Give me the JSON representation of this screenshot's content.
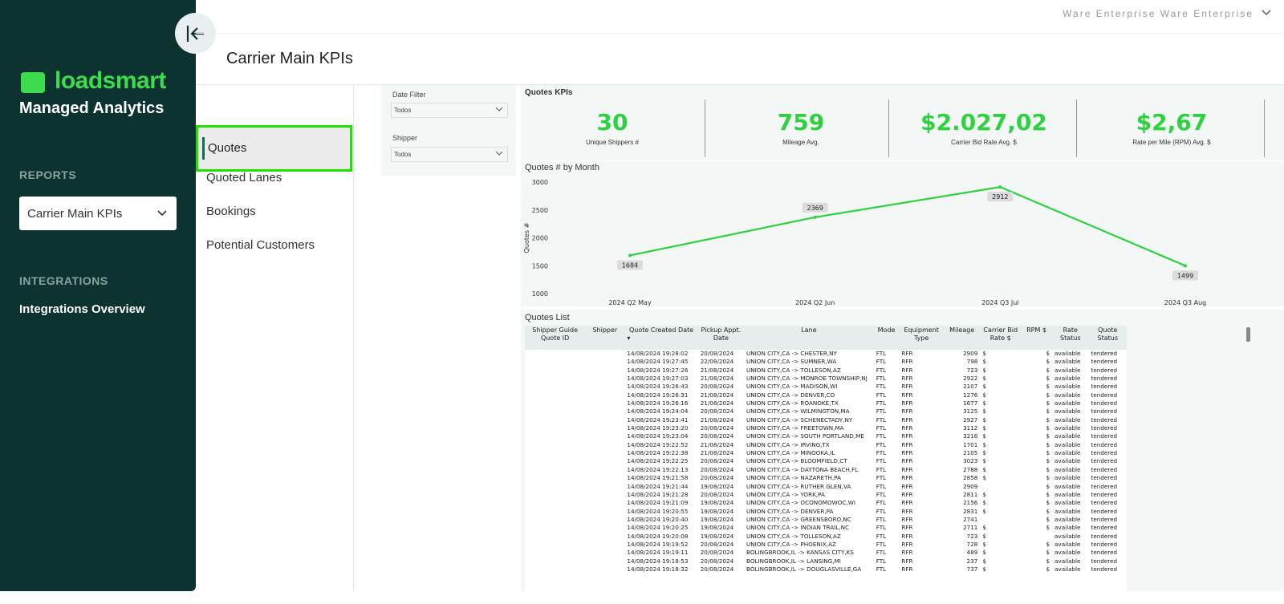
{
  "sidebar": {
    "logo_text": "loadsmart",
    "brand_subtitle": "Managed Analytics",
    "reports_label": "REPORTS",
    "report_selected": "Carrier Main KPIs",
    "integrations_label": "INTEGRATIONS",
    "integrations_link": "Integrations Overview"
  },
  "topbar": {
    "user_text": "Ware Enterprise    Ware Enterprise"
  },
  "page_title": "Carrier Main KPIs",
  "left_nav": {
    "items": [
      "Quotes",
      "Quoted Lanes",
      "Bookings",
      "Potential Customers"
    ],
    "active": "Quotes"
  },
  "filters": {
    "date_label": "Date Filter",
    "date_value": "Todos",
    "shipper_label": "Shipper",
    "shipper_value": "Todos"
  },
  "kpis": {
    "title": "Quotes KPIs",
    "items": [
      {
        "value": "30",
        "label": "Unique Shippers #"
      },
      {
        "value": "759",
        "label": "Mileage Avg."
      },
      {
        "value": "$2.027,02",
        "label": "Carrier Bid Rate Avg. $"
      },
      {
        "value": "$2,67",
        "label": "Rate per Mile (RPM) Avg. $"
      }
    ]
  },
  "chart_data": {
    "type": "line",
    "title": "Quotes # by Month",
    "xlabel": "",
    "ylabel": "Quotes #",
    "categories": [
      "2024 Q2 May",
      "2024 Q2 Jun",
      "2024 Q3 Jul",
      "2024 Q3 Aug"
    ],
    "values": [
      1684,
      2369,
      2912,
      1499
    ],
    "ylim": [
      1000,
      3000
    ],
    "yticks": [
      1000,
      1500,
      2000,
      2500,
      3000
    ],
    "color": "#2ed240",
    "grid": false,
    "data_labels": true
  },
  "quotes_list": {
    "title": "Quotes List",
    "columns": [
      "Shipper Guide Quote ID",
      "Shipper",
      "Quote Created Date",
      "Pickup Appt. Date",
      "Lane",
      "Mode",
      "Equipment Type",
      "Mileage",
      "Carrier Bid Rate $",
      "RPM $",
      "Rate Status",
      "Quote Status"
    ],
    "rows": [
      [
        "",
        "",
        "14/08/2024 19:28:02",
        "20/08/2024",
        "UNION CITY,CA -> CHESTER,NY",
        "FTL",
        "RFR",
        "2909",
        "$",
        "$",
        "available",
        "tendered"
      ],
      [
        "",
        "",
        "14/08/2024 19:27:45",
        "22/08/2024",
        "UNION CITY,CA -> SUMNER,WA",
        "FTL",
        "RFR",
        "798",
        "$",
        "$",
        "available",
        "tendered"
      ],
      [
        "",
        "",
        "14/08/2024 19:27:26",
        "21/08/2024",
        "UNION CITY,CA -> TOLLESON,AZ",
        "FTL",
        "RFR",
        "723",
        "$",
        "$",
        "available",
        "tendered"
      ],
      [
        "",
        "",
        "14/08/2024 19:27:03",
        "21/08/2024",
        "UNION CITY,CA -> MONROE TOWNSHIP,NJ",
        "FTL",
        "RFR",
        "2922",
        "$",
        "$",
        "available",
        "tendered"
      ],
      [
        "",
        "",
        "14/08/2024 19:26:43",
        "20/08/2024",
        "UNION CITY,CA -> MADISON,WI",
        "FTL",
        "RFR",
        "2107",
        "$",
        "$",
        "available",
        "tendered"
      ],
      [
        "",
        "",
        "14/08/2024 19:26:31",
        "21/08/2024",
        "UNION CITY,CA -> DENVER,CO",
        "FTL",
        "RFR",
        "1276",
        "$",
        "$",
        "available",
        "tendered"
      ],
      [
        "",
        "",
        "14/08/2024 19:26:16",
        "21/08/2024",
        "UNION CITY,CA -> ROANOKE,TX",
        "FTL",
        "RFR",
        "1677",
        "$",
        "$",
        "available",
        "tendered"
      ],
      [
        "",
        "",
        "14/08/2024 19:24:04",
        "20/08/2024",
        "UNION CITY,CA -> WILMINGTON,MA",
        "FTL",
        "RFR",
        "3125",
        "$",
        "$",
        "available",
        "tendered"
      ],
      [
        "",
        "",
        "14/08/2024 19:23:41",
        "21/08/2024",
        "UNION CITY,CA -> SCHENECTADY,NY",
        "FTL",
        "RFR",
        "2927",
        "$",
        "$",
        "available",
        "tendered"
      ],
      [
        "",
        "",
        "14/08/2024 19:23:20",
        "20/08/2024",
        "UNION CITY,CA -> FREETOWN,MA",
        "FTL",
        "RFR",
        "3112",
        "$",
        "$",
        "available",
        "tendered"
      ],
      [
        "",
        "",
        "14/08/2024 19:23:04",
        "20/08/2024",
        "UNION CITY,CA -> SOUTH PORTLAND,ME",
        "FTL",
        "RFR",
        "3216",
        "$",
        "$",
        "available",
        "tendered"
      ],
      [
        "",
        "",
        "14/08/2024 19:22:52",
        "21/08/2024",
        "UNION CITY,CA -> IRVING,TX",
        "FTL",
        "RFR",
        "1701",
        "$",
        "$",
        "available",
        "tendered"
      ],
      [
        "",
        "",
        "14/08/2024 19:22:38",
        "21/08/2024",
        "UNION CITY,CA -> MINOOKA,IL",
        "FTL",
        "RFR",
        "2105",
        "$",
        "$",
        "available",
        "tendered"
      ],
      [
        "",
        "",
        "14/08/2024 19:22:25",
        "20/08/2024",
        "UNION CITY,CA -> BLOOMFIELD,CT",
        "FTL",
        "RFR",
        "3023",
        "$",
        "$",
        "available",
        "tendered"
      ],
      [
        "",
        "",
        "14/08/2024 19:22:13",
        "20/08/2024",
        "UNION CITY,CA -> DAYTONA BEACH,FL",
        "FTL",
        "RFR",
        "2788",
        "$",
        "$",
        "available",
        "tendered"
      ],
      [
        "",
        "",
        "14/08/2024 19:21:58",
        "20/08/2024",
        "UNION CITY,CA -> NAZARETH,PA",
        "FTL",
        "RFR",
        "2858",
        "$",
        "$",
        "available",
        "tendered"
      ],
      [
        "",
        "",
        "14/08/2024 19:21:44",
        "19/08/2024",
        "UNION CITY,CA -> RUTHER GLEN,VA",
        "FTL",
        "RFR",
        "2909",
        "",
        "$",
        "available",
        "tendered"
      ],
      [
        "",
        "",
        "14/08/2024 19:21:28",
        "20/08/2024",
        "UNION CITY,CA -> YORK,PA",
        "FTL",
        "RFR",
        "2811",
        "$",
        "$",
        "available",
        "tendered"
      ],
      [
        "",
        "",
        "14/08/2024 19:21:09",
        "19/08/2024",
        "UNION CITY,CA -> OCONOMOWOC,WI",
        "FTL",
        "RFR",
        "2156",
        "$",
        "$",
        "available",
        "tendered"
      ],
      [
        "",
        "",
        "14/08/2024 19:20:55",
        "19/08/2024",
        "UNION CITY,CA -> DENVER,PA",
        "FTL",
        "RFR",
        "2831",
        "$",
        "$",
        "available",
        "tendered"
      ],
      [
        "",
        "",
        "14/08/2024 19:20:40",
        "19/08/2024",
        "UNION CITY,CA -> GREENSBORO,NC",
        "FTL",
        "RFR",
        "2741",
        "",
        "$",
        "available",
        "tendered"
      ],
      [
        "",
        "",
        "14/08/2024 19:20:25",
        "19/08/2024",
        "UNION CITY,CA -> INDIAN TRAIL,NC",
        "FTL",
        "RFR",
        "2711",
        "$",
        "$",
        "available",
        "tendered"
      ],
      [
        "",
        "",
        "14/08/2024 19:20:08",
        "19/08/2024",
        "UNION CITY,CA -> TOLLESON,AZ",
        "FTL",
        "RFR",
        "723",
        "$",
        "",
        "available",
        "tendered"
      ],
      [
        "",
        "",
        "14/08/2024 19:19:52",
        "20/08/2024",
        "UNION CITY,CA -> PHOENIX,AZ",
        "FTL",
        "RFR",
        "728",
        "$",
        "$",
        "available",
        "tendered"
      ],
      [
        "",
        "",
        "14/08/2024 19:19:11",
        "20/08/2024",
        "BOLINGBROOK,IL -> KANSAS CITY,KS",
        "FTL",
        "RFR",
        "489",
        "$",
        "$",
        "available",
        "tendered"
      ],
      [
        "",
        "",
        "14/08/2024 19:18:53",
        "20/08/2024",
        "BOLINGBROOK,IL -> LANSING,MI",
        "FTL",
        "RFR",
        "237",
        "$",
        "$",
        "available",
        "tendered"
      ],
      [
        "",
        "",
        "14/08/2024 19:18:32",
        "20/08/2024",
        "BOLINGBROOK,IL -> DOUGLASVILLE,GA",
        "FTL",
        "RFR",
        "737",
        "$",
        "$",
        "available",
        "tendered"
      ]
    ]
  }
}
